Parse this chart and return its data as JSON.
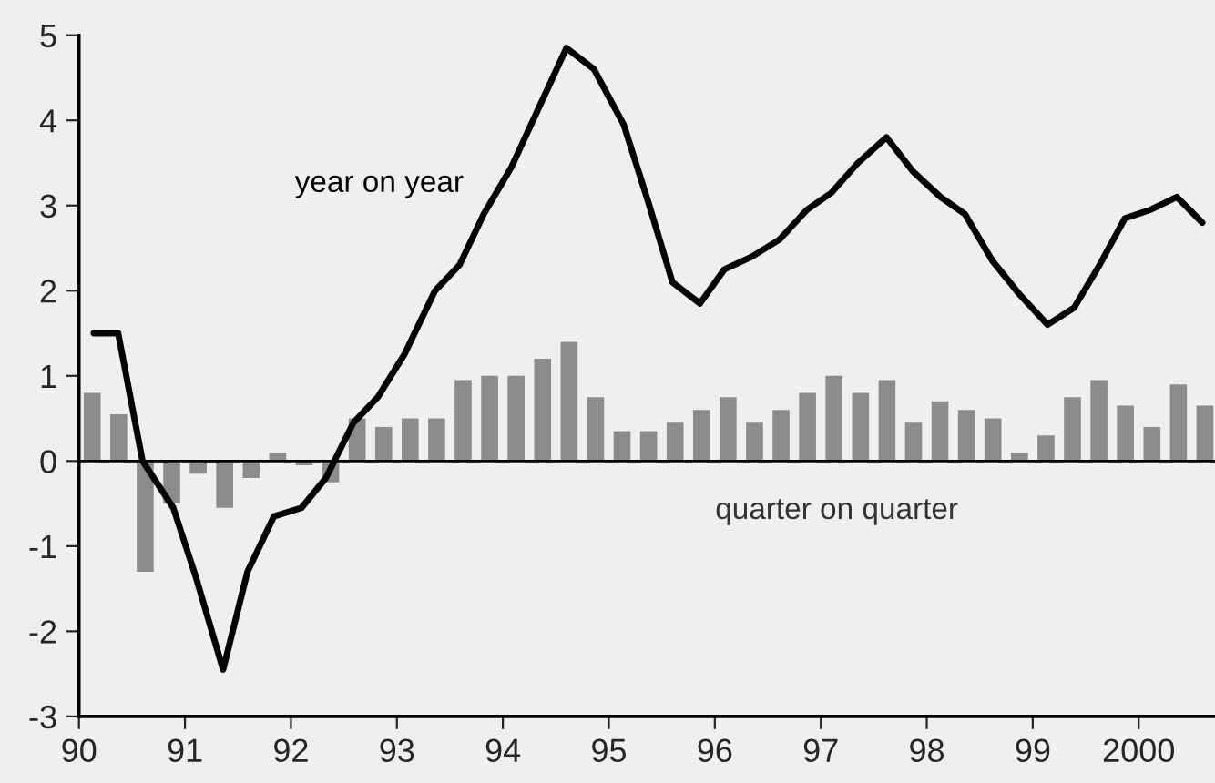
{
  "chart_data": {
    "type": "bar",
    "series": [
      {
        "name": "quarter on quarter",
        "color": "#8c8c8c",
        "x": [
          1990.125,
          1990.375,
          1990.625,
          1990.875,
          1991.125,
          1991.375,
          1991.625,
          1991.875,
          1992.125,
          1992.375,
          1992.625,
          1992.875,
          1993.125,
          1993.375,
          1993.625,
          1993.875,
          1994.125,
          1994.375,
          1994.625,
          1994.875,
          1995.125,
          1995.375,
          1995.625,
          1995.875,
          1996.125,
          1996.375,
          1996.625,
          1996.875,
          1997.125,
          1997.375,
          1997.625,
          1997.875,
          1998.125,
          1998.375,
          1998.625,
          1998.875,
          1999.125,
          1999.375,
          1999.625,
          1999.875,
          2000.125,
          2000.375,
          2000.625
        ],
        "values": [
          0.8,
          0.55,
          -1.3,
          -0.5,
          -0.15,
          -0.55,
          -0.2,
          0.1,
          -0.05,
          -0.25,
          0.5,
          0.4,
          0.5,
          0.5,
          0.95,
          1.0,
          1.0,
          1.2,
          1.4,
          0.75,
          0.35,
          0.35,
          0.45,
          0.6,
          0.75,
          0.45,
          0.6,
          0.8,
          1.0,
          0.8,
          0.95,
          0.45,
          0.7,
          0.6,
          0.5,
          0.1,
          0.3,
          0.75,
          0.95,
          0.65,
          0.4,
          0.9,
          0.65
        ]
      },
      {
        "name": "year on year",
        "type": "line",
        "color": "#000000",
        "x": [
          1990.14,
          1990.37,
          1990.6,
          1990.89,
          1991.1,
          1991.36,
          1991.59,
          1991.84,
          1992.1,
          1992.33,
          1992.59,
          1992.82,
          1993.07,
          1993.36,
          1993.59,
          1993.82,
          1994.08,
          1994.34,
          1994.6,
          1994.86,
          1995.14,
          1995.37,
          1995.6,
          1995.86,
          1996.09,
          1996.35,
          1996.61,
          1996.87,
          1997.1,
          1997.35,
          1997.62,
          1997.87,
          1998.13,
          1998.36,
          1998.62,
          1998.88,
          1999.14,
          1999.39,
          1999.63,
          1999.87,
          2000.11,
          2000.36,
          2000.6
        ],
        "values": [
          1.5,
          1.5,
          0,
          -0.55,
          -1.35,
          -2.45,
          -1.3,
          -0.65,
          -0.55,
          -0.2,
          0.45,
          0.75,
          1.25,
          2.0,
          2.3,
          2.9,
          3.45,
          4.15,
          4.85,
          4.6,
          3.95,
          3.05,
          2.1,
          1.85,
          2.25,
          2.4,
          2.6,
          2.95,
          3.15,
          3.5,
          3.8,
          3.4,
          3.1,
          2.9,
          2.35,
          1.95,
          1.6,
          1.8,
          2.3,
          2.85,
          2.95,
          3.1,
          2.8
        ]
      }
    ],
    "xlim": [
      1990,
      2000.72
    ],
    "xticks": [
      {
        "value": 1990,
        "label": "90"
      },
      {
        "value": 1991,
        "label": "91"
      },
      {
        "value": 1992,
        "label": "92"
      },
      {
        "value": 1993,
        "label": "93"
      },
      {
        "value": 1994,
        "label": "94"
      },
      {
        "value": 1995,
        "label": "95"
      },
      {
        "value": 1996,
        "label": "96"
      },
      {
        "value": 1997,
        "label": "97"
      },
      {
        "value": 1998,
        "label": "98"
      },
      {
        "value": 1999,
        "label": "99"
      },
      {
        "value": 2000,
        "label": "2000"
      }
    ],
    "ylim": [
      -3,
      5
    ],
    "yticks": [
      -3,
      -2,
      -1,
      0,
      1,
      2,
      3,
      4,
      5
    ],
    "ref_lines": [
      {
        "axis": "y",
        "value": 0,
        "color": "#000000"
      }
    ],
    "grid": false,
    "legend": false
  }
}
